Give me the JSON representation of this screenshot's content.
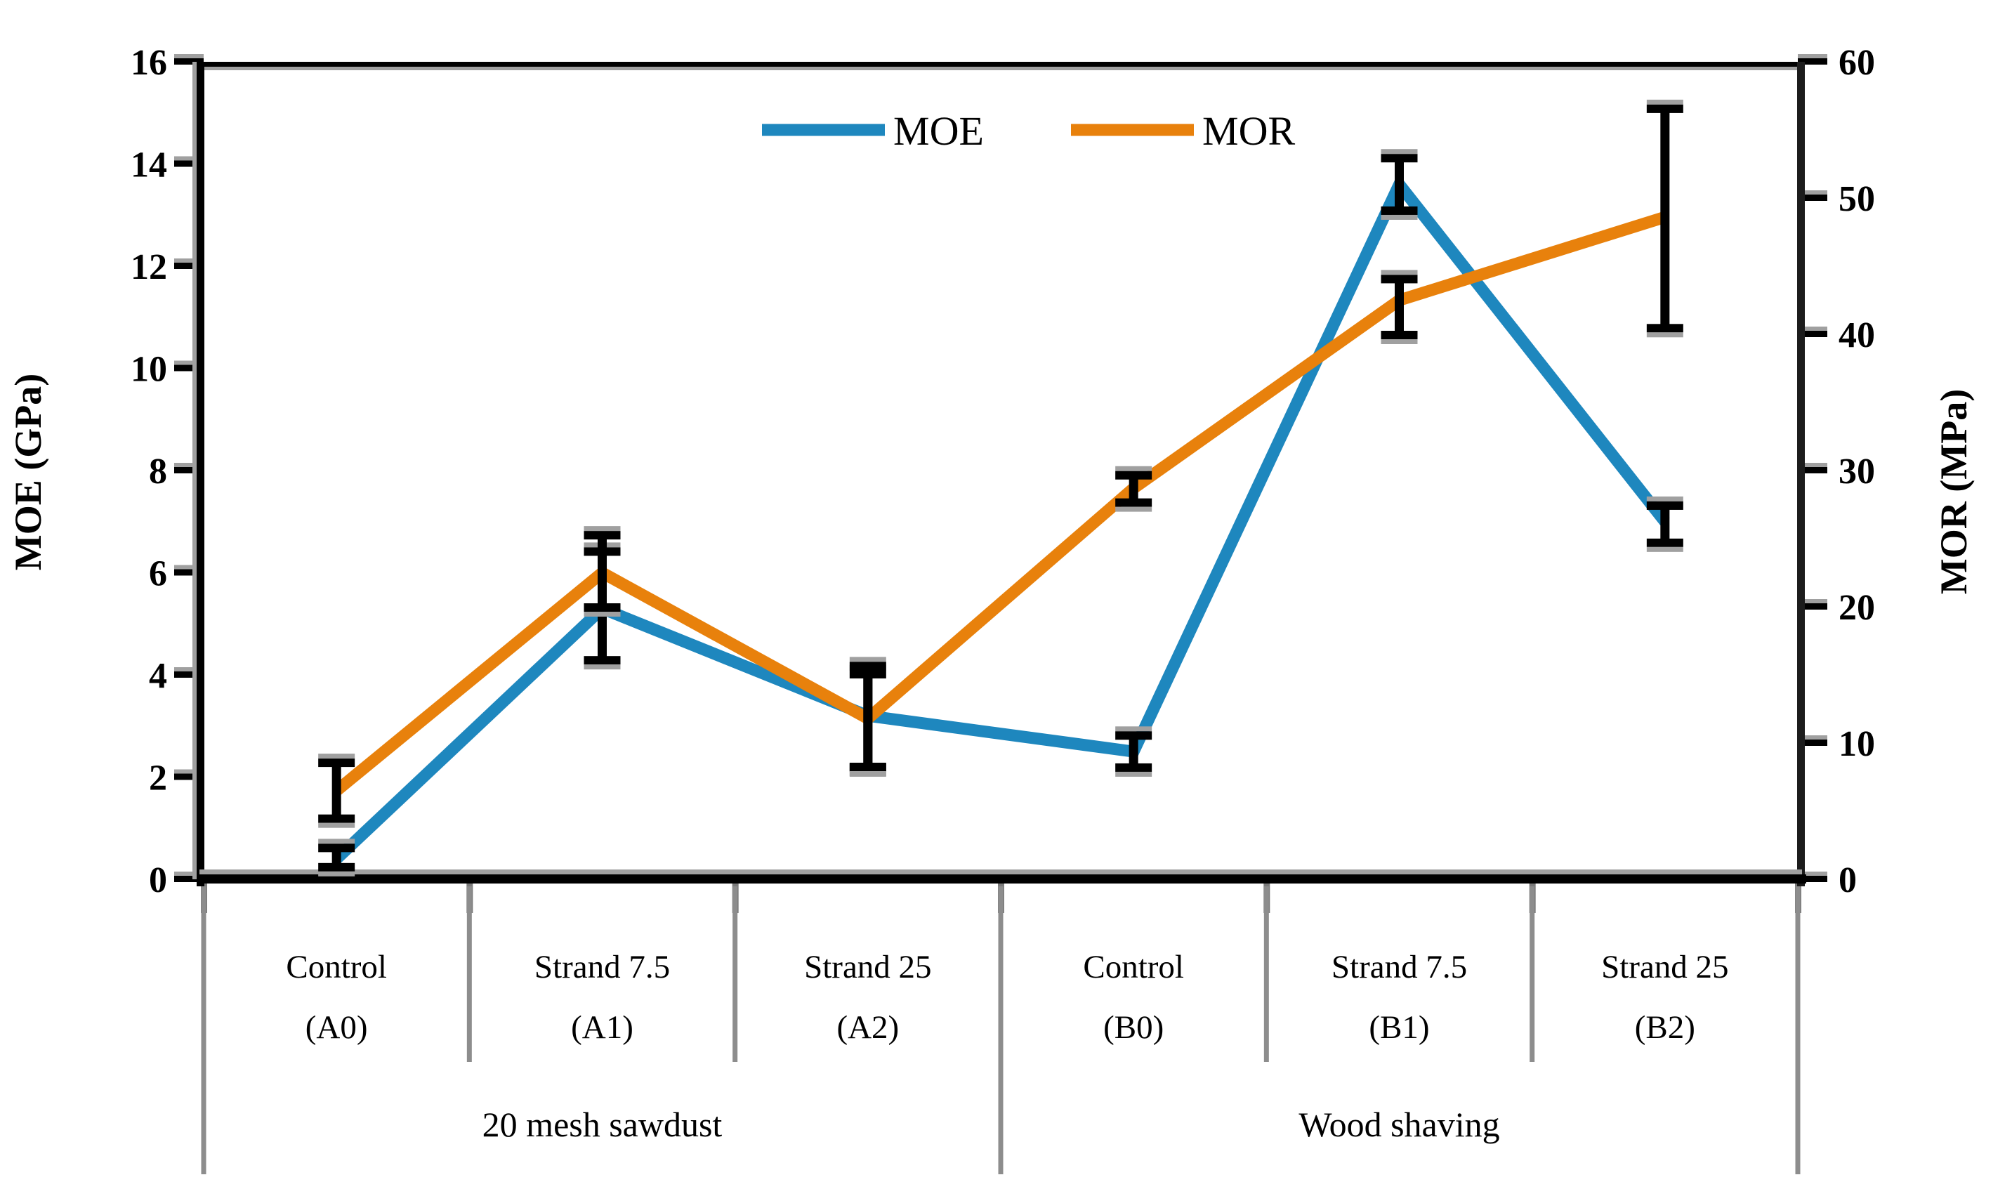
{
  "chart_data": {
    "type": "line",
    "title": "",
    "categories": [
      "Control (A0)",
      "Strand 7.5 (A1)",
      "Strand 25 (A2)",
      "Control (B0)",
      "Strand 7.5 (B1)",
      "Strand 25 (B2)"
    ],
    "category_labels": [
      "Control",
      "Strand 7.5",
      "Strand 25",
      "Control",
      "Strand 7.5",
      "Strand 25"
    ],
    "category_codes": [
      "(A0)",
      "(A1)",
      "(A2)",
      "(B0)",
      "(B1)",
      "(B2)"
    ],
    "groups": [
      {
        "label": "20 mesh sawdust",
        "from": 0,
        "to": 3
      },
      {
        "label": "Wood shaving",
        "from": 3,
        "to": 6
      }
    ],
    "left_axis": {
      "label": "MOE (GPa)",
      "min": 0,
      "max": 16,
      "step": 2,
      "tick_labels": [
        "0",
        "2",
        "4",
        "6",
        "8",
        "10",
        "12",
        "14",
        "16"
      ]
    },
    "right_axis": {
      "label": "MOR (MPa)",
      "min": 0,
      "max": 60,
      "step": 10,
      "tick_labels": [
        "0",
        "10",
        "20",
        "30",
        "40",
        "50",
        "60"
      ]
    },
    "legend": {
      "position": "top-center",
      "items": [
        "MOE",
        "MOR"
      ]
    },
    "grid": false,
    "series": [
      {
        "name": "MOE",
        "axis": "left",
        "unit": "GPa",
        "color": "#1E87BE",
        "values": [
          0.4,
          5.3,
          3.2,
          2.5,
          13.6,
          7.0
        ],
        "err_lo": [
          0.25,
          4.3,
          2.2,
          2.2,
          13.1,
          6.6
        ],
        "err_hi": [
          0.6,
          6.4,
          4.0,
          2.8,
          14.1,
          7.3
        ]
      },
      {
        "name": "MOR",
        "axis": "right",
        "unit": "MPa",
        "color": "#E8810C",
        "values": [
          6.5,
          22.5,
          11.8,
          28.7,
          42.5,
          48.6
        ],
        "err_lo": [
          4.5,
          20.0,
          8.3,
          27.7,
          40.0,
          40.5
        ],
        "err_hi": [
          8.5,
          25.2,
          15.6,
          29.6,
          44.0,
          56.5
        ]
      }
    ]
  },
  "style": {
    "background": "#ffffff",
    "axis_color": "#000000",
    "divider_color": "#8d8d8d",
    "shadow_color": "#a0a0a0",
    "text_color": "#000000",
    "error_bar_color": "#000000"
  }
}
